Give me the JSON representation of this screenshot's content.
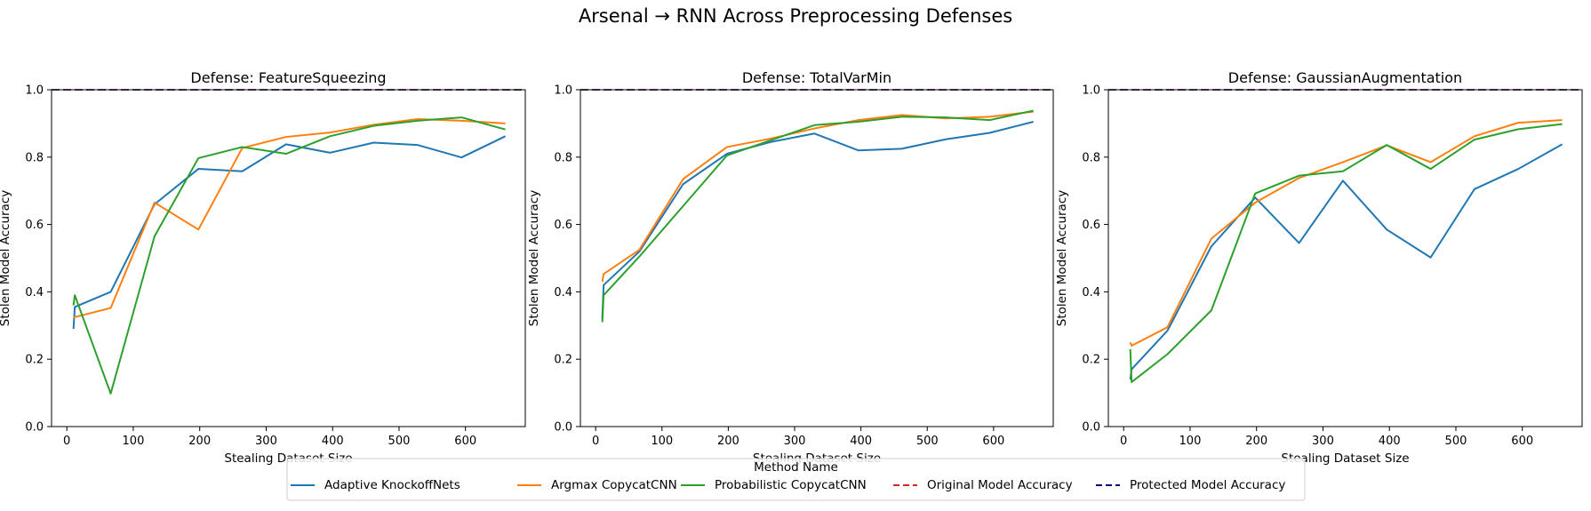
{
  "title": "Arsenal → RNN Across Preprocessing Defenses",
  "colors": {
    "Adaptive KnockoffNets": "#1f77b4",
    "Argmax CopycatCNN": "#ff7f0e",
    "Probabilistic CopycatCNN": "#2ca02c",
    "Original Model Accuracy": "#d62728",
    "Protected Model Accuracy": "#000080"
  },
  "legend": {
    "title": "Method Name",
    "placement": "bottom-center",
    "entries": [
      {
        "label": "Adaptive KnockoffNets",
        "style": "solid"
      },
      {
        "label": "Argmax CopycatCNN",
        "style": "solid"
      },
      {
        "label": "Probabilistic CopycatCNN",
        "style": "solid"
      },
      {
        "label": "Original Model Accuracy",
        "style": "dashed"
      },
      {
        "label": "Protected Model Accuracy",
        "style": "dashed"
      }
    ]
  },
  "chart_data": [
    {
      "type": "line",
      "title": "Defense: FeatureSqueezing",
      "xlabel": "Stealing Dataset Size",
      "ylabel": "Stolen Model Accuracy",
      "xlim": [
        -23,
        690
      ],
      "ylim": [
        0,
        1.0
      ],
      "xticks": [
        0,
        100,
        200,
        300,
        400,
        500,
        600
      ],
      "yticks": [
        0.0,
        0.2,
        0.4,
        0.6,
        0.8,
        1.0
      ],
      "grid": false,
      "series": [
        {
          "name": "Adaptive KnockoffNets",
          "x": [
            10,
            12,
            66,
            132,
            198,
            264,
            330,
            396,
            462,
            528,
            594,
            660
          ],
          "y": [
            0.29,
            0.355,
            0.4,
            0.66,
            0.765,
            0.758,
            0.838,
            0.813,
            0.843,
            0.836,
            0.799,
            0.862
          ]
        },
        {
          "name": "Argmax CopycatCNN",
          "x": [
            10,
            12,
            66,
            132,
            198,
            264,
            330,
            396,
            462,
            528,
            594,
            660
          ],
          "y": [
            0.322,
            0.325,
            0.352,
            0.665,
            0.585,
            0.827,
            0.86,
            0.873,
            0.896,
            0.913,
            0.908,
            0.9
          ]
        },
        {
          "name": "Probabilistic CopycatCNN",
          "x": [
            10,
            12,
            66,
            132,
            198,
            264,
            330,
            396,
            462,
            528,
            594,
            660
          ],
          "y": [
            0.36,
            0.39,
            0.098,
            0.565,
            0.797,
            0.83,
            0.81,
            0.862,
            0.893,
            0.908,
            0.918,
            0.882
          ]
        },
        {
          "name": "Original Model Accuracy",
          "hline": 1.0
        },
        {
          "name": "Protected Model Accuracy",
          "hline": 1.0
        }
      ]
    },
    {
      "type": "line",
      "title": "Defense: TotalVarMin",
      "xlabel": "Stealing Dataset Size",
      "ylabel": "Stolen Model Accuracy",
      "xlim": [
        -23,
        690
      ],
      "ylim": [
        0,
        1.0
      ],
      "xticks": [
        0,
        100,
        200,
        300,
        400,
        500,
        600
      ],
      "yticks": [
        0.0,
        0.2,
        0.4,
        0.6,
        0.8,
        1.0
      ],
      "grid": false,
      "series": [
        {
          "name": "Adaptive KnockoffNets",
          "x": [
            10,
            12,
            66,
            132,
            198,
            264,
            330,
            396,
            462,
            528,
            594,
            660
          ],
          "y": [
            0.32,
            0.42,
            0.52,
            0.72,
            0.81,
            0.845,
            0.87,
            0.82,
            0.825,
            0.853,
            0.872,
            0.905
          ]
        },
        {
          "name": "Argmax CopycatCNN",
          "x": [
            10,
            12,
            66,
            132,
            198,
            264,
            330,
            396,
            462,
            528,
            594,
            660
          ],
          "y": [
            0.43,
            0.453,
            0.525,
            0.735,
            0.83,
            0.855,
            0.885,
            0.91,
            0.925,
            0.915,
            0.92,
            0.935
          ]
        },
        {
          "name": "Probabilistic CopycatCNN",
          "x": [
            10,
            12,
            66,
            132,
            198,
            264,
            330,
            396,
            462,
            528,
            594,
            660
          ],
          "y": [
            0.31,
            0.39,
            0.505,
            0.655,
            0.805,
            0.85,
            0.895,
            0.905,
            0.92,
            0.918,
            0.91,
            0.938
          ]
        },
        {
          "name": "Original Model Accuracy",
          "hline": 1.0
        },
        {
          "name": "Protected Model Accuracy",
          "hline": 1.0
        }
      ]
    },
    {
      "type": "line",
      "title": "Defense: GaussianAugmentation",
      "xlabel": "Stealing Dataset Size",
      "ylabel": "Stolen Model Accuracy",
      "xlim": [
        -23,
        690
      ],
      "ylim": [
        0,
        1.0
      ],
      "xticks": [
        0,
        100,
        200,
        300,
        400,
        500,
        600
      ],
      "yticks": [
        0.0,
        0.2,
        0.4,
        0.6,
        0.8,
        1.0
      ],
      "grid": false,
      "series": [
        {
          "name": "Adaptive KnockoffNets",
          "x": [
            10,
            12,
            66,
            132,
            198,
            264,
            330,
            396,
            462,
            528,
            594,
            660
          ],
          "y": [
            0.14,
            0.17,
            0.285,
            0.535,
            0.68,
            0.545,
            0.73,
            0.585,
            0.502,
            0.705,
            0.765,
            0.838
          ]
        },
        {
          "name": "Argmax CopycatCNN",
          "x": [
            10,
            12,
            66,
            132,
            198,
            264,
            330,
            396,
            462,
            528,
            594,
            660
          ],
          "y": [
            0.25,
            0.24,
            0.295,
            0.558,
            0.665,
            0.738,
            0.785,
            0.835,
            0.785,
            0.862,
            0.902,
            0.91
          ]
        },
        {
          "name": "Probabilistic CopycatCNN",
          "x": [
            10,
            12,
            66,
            132,
            198,
            264,
            330,
            396,
            462,
            528,
            594,
            660
          ],
          "y": [
            0.23,
            0.132,
            0.215,
            0.345,
            0.692,
            0.745,
            0.758,
            0.836,
            0.765,
            0.852,
            0.883,
            0.898
          ]
        },
        {
          "name": "Original Model Accuracy",
          "hline": 1.0
        },
        {
          "name": "Protected Model Accuracy",
          "hline": 1.0
        }
      ]
    }
  ]
}
